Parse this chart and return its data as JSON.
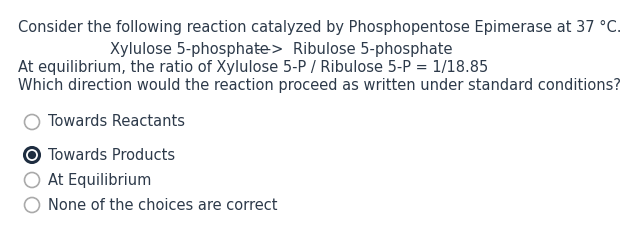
{
  "background_color": "#ffffff",
  "text_color": "#2d3a4a",
  "line1": "Consider the following reaction catalyzed by Phosphopentose Epimerase at 37 °C.",
  "line2_part1": "Xylulose 5-phosphate",
  "line2_arrow": "--->",
  "line2_part2": "Ribulose 5-phosphate",
  "line3": "At equilibrium, the ratio of Xylulose 5-P / Ribulose 5-P = 1/18.85",
  "line4": "Which direction would the reaction proceed as written under standard conditions?",
  "options": [
    "Towards Reactants",
    "Towards Products",
    "At Equilibrium",
    "None of the choices are correct"
  ],
  "selected_index": 1,
  "font_size_text": 10.5,
  "font_size_options": 10.5,
  "font_family": "DejaVu Sans",
  "radio_unselected_color": "#aaaaaa",
  "radio_selected_color": "#1e2d40"
}
